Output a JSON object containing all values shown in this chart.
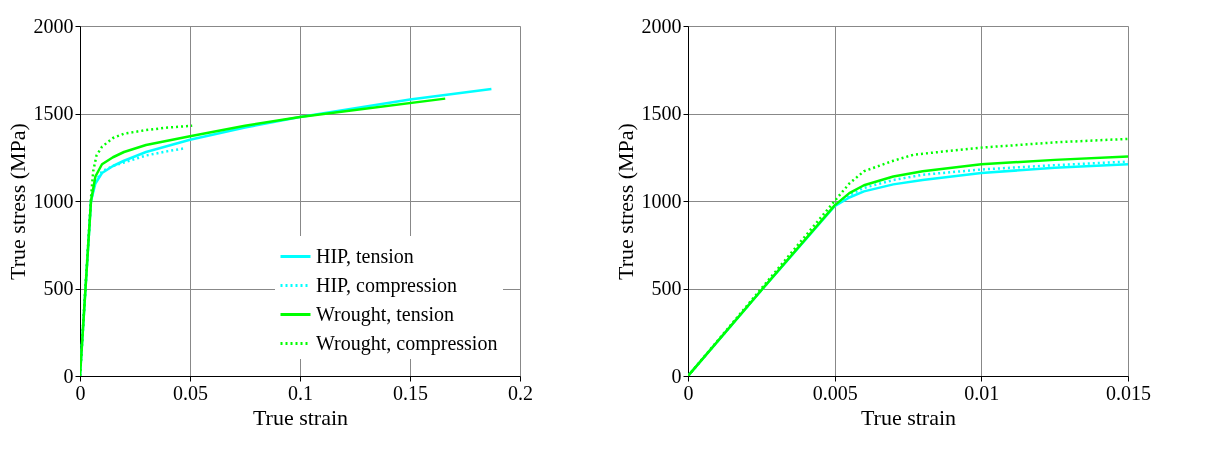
{
  "chart_data": [
    {
      "type": "line",
      "xlabel": "True strain",
      "ylabel": "True stress (MPa)",
      "xlim": [
        0,
        0.2
      ],
      "ylim": [
        0,
        2000
      ],
      "xticks": [
        0,
        0.05,
        0.1,
        0.15,
        0.2
      ],
      "yticks": [
        0,
        500,
        1000,
        1500,
        2000
      ],
      "grid": true,
      "legend": "bottom right",
      "series": [
        {
          "name": "HIP, tension",
          "color": "#00ffff",
          "line_style": "solid",
          "x": [
            0,
            0.005,
            0.007,
            0.01,
            0.015,
            0.02,
            0.03,
            0.05,
            0.075,
            0.1,
            0.125,
            0.15,
            0.187
          ],
          "values": [
            0,
            1000,
            1100,
            1160,
            1200,
            1230,
            1280,
            1350,
            1420,
            1480,
            1530,
            1580,
            1640
          ]
        },
        {
          "name": "HIP, compression",
          "color": "#00ffff",
          "line_style": "dotted",
          "x": [
            0,
            0.005,
            0.007,
            0.01,
            0.015,
            0.02,
            0.03,
            0.04,
            0.047
          ],
          "values": [
            0,
            1000,
            1110,
            1170,
            1200,
            1220,
            1260,
            1285,
            1300
          ]
        },
        {
          "name": "Wrought, tension",
          "color": "#00ff00",
          "line_style": "solid",
          "x": [
            0,
            0.005,
            0.007,
            0.01,
            0.015,
            0.02,
            0.03,
            0.05,
            0.075,
            0.1,
            0.125,
            0.166
          ],
          "values": [
            0,
            1000,
            1140,
            1210,
            1250,
            1280,
            1320,
            1370,
            1430,
            1480,
            1520,
            1585
          ]
        },
        {
          "name": "Wrought, compression",
          "color": "#00ff00",
          "line_style": "dotted",
          "x": [
            0,
            0.005,
            0.006,
            0.0075,
            0.01,
            0.015,
            0.02,
            0.03,
            0.04,
            0.051
          ],
          "values": [
            0,
            1020,
            1170,
            1260,
            1310,
            1360,
            1385,
            1405,
            1420,
            1430
          ]
        }
      ]
    },
    {
      "type": "line",
      "xlabel": "True strain",
      "ylabel": "True stress (MPa)",
      "xlim": [
        0,
        0.015
      ],
      "ylim": [
        0,
        2000
      ],
      "xticks": [
        0,
        0.005,
        0.01,
        0.015
      ],
      "yticks": [
        0,
        500,
        1000,
        1500,
        2000
      ],
      "grid": true,
      "series": [
        {
          "color": "#00ffff",
          "line_style": "solid",
          "x": [
            0,
            0.0025,
            0.005,
            0.0055,
            0.006,
            0.007,
            0.008,
            0.01,
            0.0125,
            0.015
          ],
          "values": [
            0,
            490,
            970,
            1020,
            1055,
            1095,
            1120,
            1160,
            1190,
            1210
          ]
        },
        {
          "color": "#00ffff",
          "line_style": "dotted",
          "x": [
            0,
            0.0025,
            0.005,
            0.0055,
            0.006,
            0.007,
            0.008,
            0.01,
            0.0125,
            0.015
          ],
          "values": [
            0,
            490,
            975,
            1035,
            1075,
            1120,
            1150,
            1180,
            1205,
            1225
          ]
        },
        {
          "color": "#00ff00",
          "line_style": "solid",
          "x": [
            0,
            0.0025,
            0.005,
            0.0055,
            0.006,
            0.007,
            0.008,
            0.01,
            0.0125,
            0.015
          ],
          "values": [
            0,
            490,
            975,
            1045,
            1090,
            1140,
            1170,
            1210,
            1235,
            1255
          ]
        },
        {
          "color": "#00ff00",
          "line_style": "dotted",
          "x": [
            0,
            0.0025,
            0.005,
            0.0055,
            0.006,
            0.007,
            0.0077,
            0.01,
            0.0125,
            0.015
          ],
          "values": [
            0,
            500,
            1000,
            1100,
            1170,
            1230,
            1265,
            1305,
            1335,
            1355
          ]
        }
      ]
    }
  ]
}
